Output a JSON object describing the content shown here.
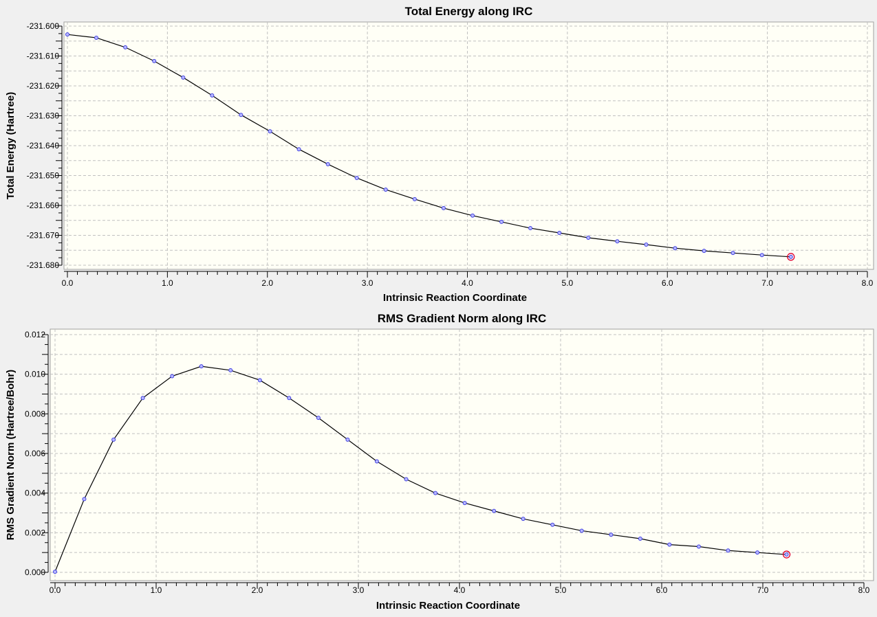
{
  "chart_data": [
    {
      "type": "line",
      "title": "Total Energy along IRC",
      "xlabel": "Intrinsic Reaction Coordinate",
      "ylabel": "Total Energy (Hartree)",
      "xlim": [
        0,
        8
      ],
      "ylim": [
        -231.68,
        -231.6
      ],
      "xticks": [
        "0.0",
        "1.0",
        "2.0",
        "3.0",
        "4.0",
        "5.0",
        "6.0",
        "7.0",
        "8.0"
      ],
      "yticks": [
        "-231.600",
        "-231.610",
        "-231.620",
        "-231.630",
        "-231.640",
        "-231.650",
        "-231.660",
        "-231.670",
        "-231.680"
      ],
      "grid": true,
      "x": [
        0,
        0.289,
        0.579,
        0.868,
        1.158,
        1.447,
        1.736,
        2.026,
        2.315,
        2.605,
        2.894,
        3.183,
        3.473,
        3.762,
        4.052,
        4.341,
        4.63,
        4.92,
        5.209,
        5.499,
        5.788,
        6.077,
        6.367,
        6.656,
        6.946,
        7.235
      ],
      "y": [
        -231.6028,
        -231.6039,
        -231.6071,
        -231.6117,
        -231.6172,
        -231.6232,
        -231.6297,
        -231.6352,
        -231.6412,
        -231.6462,
        -231.6508,
        -231.6547,
        -231.6579,
        -231.6609,
        -231.6634,
        -231.6655,
        -231.6676,
        -231.6692,
        -231.6708,
        -231.672,
        -231.6731,
        -231.6743,
        -231.6752,
        -231.6759,
        -231.6766,
        -231.6772
      ],
      "highlight_last": true
    },
    {
      "type": "line",
      "title": "RMS Gradient Norm along IRC",
      "xlabel": "Intrinsic Reaction Coordinate",
      "ylabel": "RMS Gradient Norm (Hartree/Bohr)",
      "xlim": [
        0,
        8
      ],
      "ylim": [
        0,
        0.012
      ],
      "xticks": [
        "0.0",
        "1.0",
        "2.0",
        "3.0",
        "4.0",
        "5.0",
        "6.0",
        "7.0",
        "8.0"
      ],
      "yticks": [
        "0.012",
        "0.010",
        "0.008",
        "0.006",
        "0.004",
        "0.002",
        "0.000"
      ],
      "grid": true,
      "x": [
        0,
        0.289,
        0.579,
        0.868,
        1.158,
        1.447,
        1.736,
        2.026,
        2.315,
        2.605,
        2.894,
        3.183,
        3.473,
        3.762,
        4.052,
        4.341,
        4.63,
        4.92,
        5.209,
        5.499,
        5.788,
        6.077,
        6.367,
        6.656,
        6.946,
        7.235
      ],
      "y": [
        3e-05,
        0.0037,
        0.0067,
        0.0088,
        0.0099,
        0.0104,
        0.0102,
        0.0097,
        0.0088,
        0.0078,
        0.0067,
        0.0056,
        0.0047,
        0.004,
        0.0035,
        0.0031,
        0.0027,
        0.0024,
        0.0021,
        0.0019,
        0.0017,
        0.0014,
        0.0013,
        0.0011,
        0.001,
        0.0009
      ],
      "highlight_last": true
    }
  ],
  "colors": {
    "plot_bg": "#fffff6",
    "point": "#4040e0",
    "highlight": "#e00030",
    "grid": "#c0c0c0"
  }
}
